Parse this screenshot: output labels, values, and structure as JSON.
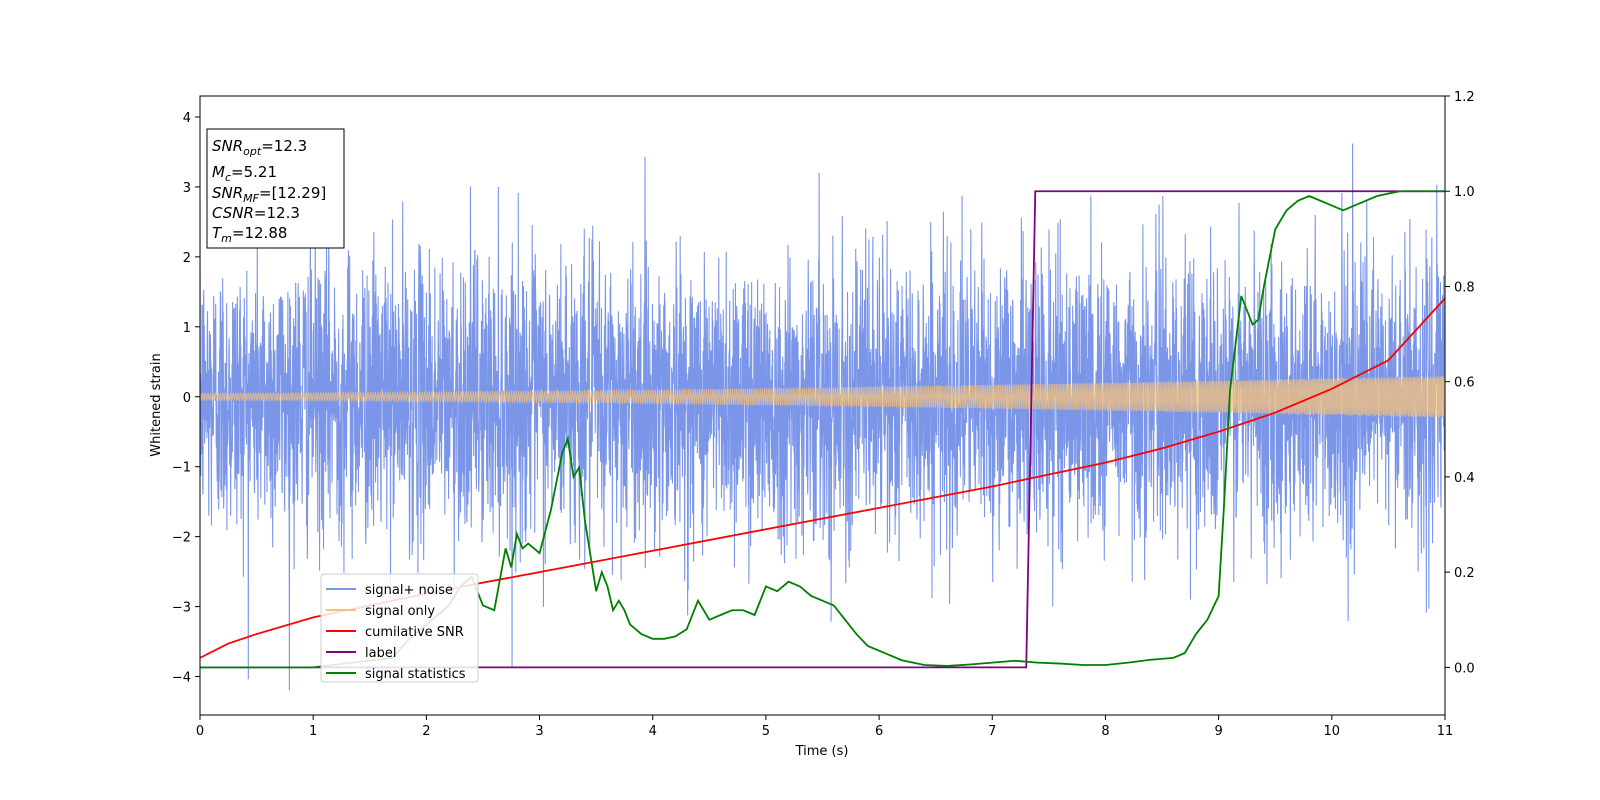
{
  "chart_data": {
    "type": "line",
    "xlabel": "Time (s)",
    "ylabel": "Whitened strain",
    "xlim": [
      0,
      11
    ],
    "ylim": [
      -4.55,
      4.3
    ],
    "y2lim": [
      -0.1,
      1.2
    ],
    "x_ticks": [
      0,
      1,
      2,
      3,
      4,
      5,
      6,
      7,
      8,
      9,
      10,
      11
    ],
    "y_ticks": [
      -4,
      -3,
      -2,
      -1,
      0,
      1,
      2,
      3,
      4
    ],
    "y2_ticks": [
      0.0,
      0.2,
      0.4,
      0.6,
      0.8,
      1.0,
      1.2
    ],
    "grid": false,
    "legend_position": "lower-left",
    "annotation": {
      "snr_opt": {
        "prefix": "SNR",
        "sub": "opt",
        "value": "=12.3"
      },
      "mc": {
        "prefix": "M",
        "sub": "c",
        "value": "=5.21"
      },
      "snr_mf": {
        "prefix": "SNR",
        "sub": "MF",
        "value": "=[12.29]"
      },
      "csnr": {
        "prefix": "CSNR",
        "sub": "",
        "value": "=12.3"
      },
      "tm": {
        "prefix": "T",
        "sub": "m",
        "value": "=12.88"
      }
    },
    "series": [
      {
        "name": "signal+ noise",
        "color": "#7b96e8",
        "axis": "left",
        "kind": "gaussian-noise",
        "std": 1.0,
        "peak_max": 3.9,
        "peak_min": -4.2
      },
      {
        "name": "signal only",
        "color": "#f5c27a",
        "axis": "left",
        "kind": "chirp",
        "amplitude_start": 0.05,
        "amplitude_end": 0.3
      },
      {
        "name": "cumilative SNR",
        "color": "#ff0000",
        "axis": "right",
        "x": [
          0,
          0.25,
          0.5,
          1,
          1.5,
          2,
          2.5,
          3,
          4,
          5,
          6,
          7,
          7.5,
          8,
          8.5,
          9,
          9.5,
          10,
          10.5,
          11
        ],
        "y": [
          0.02,
          0.05,
          0.07,
          0.105,
          0.13,
          0.155,
          0.178,
          0.2,
          0.245,
          0.29,
          0.335,
          0.38,
          0.405,
          0.43,
          0.46,
          0.495,
          0.535,
          0.585,
          0.645,
          0.775
        ]
      },
      {
        "name": "label",
        "color": "#800080",
        "axis": "right",
        "x": [
          0,
          7.3,
          7.38,
          11
        ],
        "y": [
          0.0,
          0.0,
          1.0,
          1.0
        ]
      },
      {
        "name": "signal statistics",
        "color": "#008000",
        "axis": "right",
        "x": [
          0,
          1,
          1.7,
          1.85,
          2.0,
          2.2,
          2.3,
          2.4,
          2.5,
          2.6,
          2.7,
          2.75,
          2.8,
          2.85,
          2.9,
          3.0,
          3.1,
          3.2,
          3.25,
          3.3,
          3.35,
          3.4,
          3.5,
          3.55,
          3.6,
          3.65,
          3.7,
          3.75,
          3.8,
          3.9,
          4.0,
          4.1,
          4.2,
          4.3,
          4.4,
          4.5,
          4.6,
          4.7,
          4.8,
          4.9,
          5.0,
          5.1,
          5.2,
          5.3,
          5.4,
          5.5,
          5.6,
          5.7,
          5.8,
          5.9,
          6.0,
          6.2,
          6.4,
          6.6,
          6.8,
          7.0,
          7.2,
          7.4,
          7.6,
          7.8,
          8.0,
          8.2,
          8.4,
          8.6,
          8.7,
          8.8,
          8.9,
          9.0,
          9.05,
          9.1,
          9.2,
          9.3,
          9.35,
          9.4,
          9.5,
          9.6,
          9.7,
          9.8,
          9.9,
          10.0,
          10.1,
          10.2,
          10.4,
          10.6,
          10.8,
          11.0
        ],
        "y": [
          0.0,
          0.0,
          0.02,
          0.06,
          0.09,
          0.13,
          0.17,
          0.19,
          0.13,
          0.12,
          0.25,
          0.21,
          0.28,
          0.25,
          0.26,
          0.24,
          0.33,
          0.45,
          0.48,
          0.4,
          0.42,
          0.31,
          0.16,
          0.2,
          0.17,
          0.12,
          0.14,
          0.12,
          0.09,
          0.07,
          0.06,
          0.06,
          0.065,
          0.08,
          0.14,
          0.1,
          0.11,
          0.12,
          0.12,
          0.11,
          0.17,
          0.16,
          0.18,
          0.17,
          0.15,
          0.14,
          0.13,
          0.1,
          0.07,
          0.045,
          0.035,
          0.015,
          0.005,
          0.003,
          0.006,
          0.01,
          0.014,
          0.01,
          0.008,
          0.005,
          0.005,
          0.01,
          0.016,
          0.02,
          0.03,
          0.07,
          0.1,
          0.15,
          0.35,
          0.58,
          0.78,
          0.72,
          0.73,
          0.8,
          0.92,
          0.96,
          0.98,
          0.99,
          0.98,
          0.97,
          0.96,
          0.97,
          0.99,
          1.0,
          1.0,
          1.0
        ]
      }
    ]
  }
}
